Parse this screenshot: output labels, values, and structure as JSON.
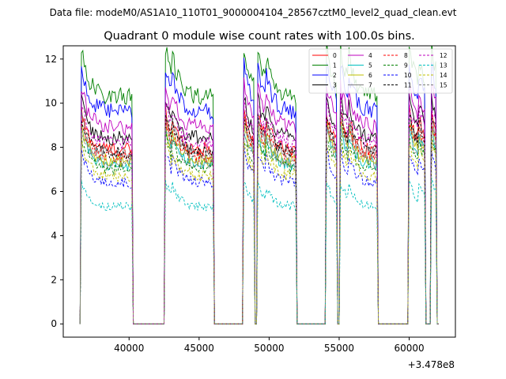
{
  "header": {
    "file_label": "Data file: modeM0/AS1A10_110T01_9000004104_28567cztM0_level2_quad_clean.evt"
  },
  "chart_data": {
    "type": "line",
    "title": "Quadrant 0 module wise count rates with 100.0s bins.",
    "xlabel": "",
    "ylabel": "",
    "x_offset_label": "+3.478e8",
    "xlim": [
      35300,
      63300
    ],
    "ylim": [
      -0.6,
      12.6
    ],
    "xticks": [
      40000,
      45000,
      50000,
      55000,
      60000
    ],
    "xtick_labels": [
      "40000",
      "45000",
      "50000",
      "55000",
      "60000"
    ],
    "yticks": [
      0,
      2,
      4,
      6,
      8,
      10,
      12
    ],
    "ytick_labels": [
      "0",
      "2",
      "4",
      "6",
      "8",
      "10",
      "12"
    ],
    "grid": false,
    "legend_position": "top-right",
    "active_segments": [
      [
        36600,
        40200
      ],
      [
        42600,
        43000
      ],
      [
        43000,
        46000
      ],
      [
        48200,
        48900
      ],
      [
        49200,
        49700
      ],
      [
        49700,
        51900
      ],
      [
        54100,
        54800
      ],
      [
        55100,
        55600
      ],
      [
        55600,
        57700
      ],
      [
        60000,
        60600
      ],
      [
        60600,
        61100
      ],
      [
        61600,
        61900
      ]
    ],
    "series": [
      {
        "name": "0",
        "color": "#ff0000",
        "dash": "solid",
        "level": 7.9
      },
      {
        "name": "1",
        "color": "#008000",
        "dash": "solid",
        "level": 10.3
      },
      {
        "name": "2",
        "color": "#0000ff",
        "dash": "solid",
        "level": 9.6
      },
      {
        "name": "3",
        "color": "#000000",
        "dash": "solid",
        "level": 8.4
      },
      {
        "name": "4",
        "color": "#bf00bf",
        "dash": "solid",
        "level": 8.9
      },
      {
        "name": "5",
        "color": "#00bfbf",
        "dash": "solid",
        "level": 7.2
      },
      {
        "name": "6",
        "color": "#bfbf00",
        "dash": "solid",
        "level": 7.4
      },
      {
        "name": "7",
        "color": "#808080",
        "dash": "solid",
        "level": 7.7
      },
      {
        "name": "8",
        "color": "#ff0000",
        "dash": "dashed",
        "level": 7.6
      },
      {
        "name": "9",
        "color": "#008000",
        "dash": "dashed",
        "level": 7.0
      },
      {
        "name": "10",
        "color": "#0000ff",
        "dash": "dashed",
        "level": 6.4
      },
      {
        "name": "11",
        "color": "#000000",
        "dash": "dashed",
        "level": 7.8
      },
      {
        "name": "12",
        "color": "#bf00bf",
        "dash": "dashed",
        "level": 8.2
      },
      {
        "name": "13",
        "color": "#00bfbf",
        "dash": "dashed",
        "level": 5.3
      },
      {
        "name": "14",
        "color": "#bfbf00",
        "dash": "dashed",
        "level": 6.7
      },
      {
        "name": "15",
        "color": "#808080",
        "dash": "dashed",
        "level": 7.3
      }
    ]
  }
}
